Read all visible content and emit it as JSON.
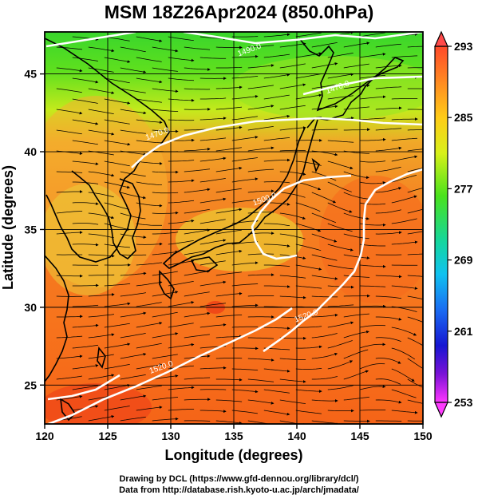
{
  "title": "MSM 18Z26Apr2024 (850.0hPa)",
  "credit": {
    "line1": "Drawing by DCL (https://www.gfd-dennou.org/library/dcl/)",
    "line2": "Data from http://database.rish.kyoto-u.ac.jp/arch/jmadata/"
  },
  "map": {
    "xlabel": "Longitude (degrees)",
    "ylabel": "Latitude  (degrees)",
    "xticks": [
      {
        "value": 120,
        "label": "120"
      },
      {
        "value": 125,
        "label": "125"
      },
      {
        "value": 130,
        "label": "130"
      },
      {
        "value": 135,
        "label": "135"
      },
      {
        "value": 140,
        "label": "140"
      },
      {
        "value": 145,
        "label": "145"
      },
      {
        "value": 150,
        "label": "150"
      }
    ],
    "yticks": [
      {
        "value": 25,
        "label": "25"
      },
      {
        "value": 30,
        "label": "30"
      },
      {
        "value": 35,
        "label": "35"
      },
      {
        "value": 40,
        "label": "40"
      },
      {
        "value": 45,
        "label": "45"
      }
    ],
    "xlim": [
      120,
      150
    ],
    "ylim": [
      22.5,
      47.7
    ],
    "grid": true,
    "contour_labels": [
      {
        "text": "1490.0",
        "lon": 136.3,
        "lat": 46.4
      },
      {
        "text": "1470.0",
        "lon": 143.3,
        "lat": 44.0
      },
      {
        "text": "1470.0",
        "lon": 129.0,
        "lat": 41.0
      },
      {
        "text": "1500.0",
        "lon": 137.5,
        "lat": 36.8
      },
      {
        "text": "1520.0",
        "lon": 140.8,
        "lat": 29.3
      },
      {
        "text": "1520.0",
        "lon": 129.3,
        "lat": 26.0
      }
    ],
    "colors": {
      "warm": "#ff6a1a",
      "mid": "#e8ec1a",
      "cool": "#1ee61e",
      "contour": "#ffffff",
      "coast": "#000000"
    }
  },
  "colorbar": {
    "ticks": [
      {
        "value": 293,
        "label": "293"
      },
      {
        "value": 285,
        "label": "285"
      },
      {
        "value": 277,
        "label": "277"
      },
      {
        "value": 269,
        "label": "269"
      },
      {
        "value": 261,
        "label": "261"
      },
      {
        "value": 253,
        "label": "253"
      }
    ],
    "min": 253,
    "max": 293
  }
}
